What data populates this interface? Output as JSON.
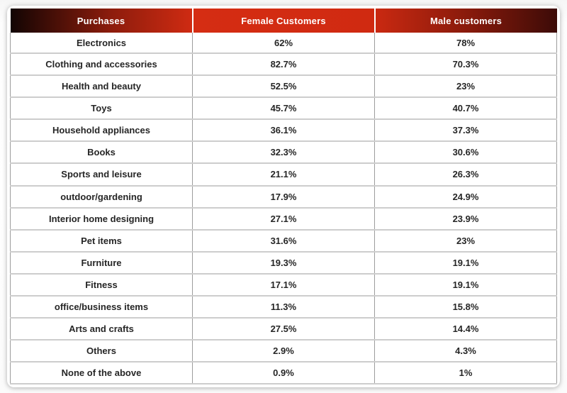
{
  "table": {
    "columns": [
      "Purchases",
      "Female Customers",
      "Male customers"
    ],
    "rows": [
      [
        "Electronics",
        "62%",
        "78%"
      ],
      [
        "Clothing and accessories",
        "82.7%",
        "70.3%"
      ],
      [
        "Health and beauty",
        "52.5%",
        "23%"
      ],
      [
        "Toys",
        "45.7%",
        "40.7%"
      ],
      [
        "Household appliances",
        "36.1%",
        "37.3%"
      ],
      [
        "Books",
        "32.3%",
        "30.6%"
      ],
      [
        "Sports and leisure",
        "21.1%",
        "26.3%"
      ],
      [
        "outdoor/gardening",
        "17.9%",
        "24.9%"
      ],
      [
        "Interior home designing",
        "27.1%",
        "23.9%"
      ],
      [
        "Pet items",
        "31.6%",
        "23%"
      ],
      [
        "Furniture",
        "19.3%",
        "19.1%"
      ],
      [
        "Fitness",
        "17.1%",
        "19.1%"
      ],
      [
        "office/business items",
        "11.3%",
        "15.8%"
      ],
      [
        "Arts and crafts",
        "27.5%",
        "14.4%"
      ],
      [
        "Others",
        "2.9%",
        "4.3%"
      ],
      [
        "None of the above",
        "0.9%",
        "1%"
      ]
    ]
  },
  "chart_data": {
    "type": "table",
    "title": "",
    "columns": [
      "Purchases",
      "Female Customers",
      "Male customers"
    ],
    "categories": [
      "Electronics",
      "Clothing and accessories",
      "Health and beauty",
      "Toys",
      "Household appliances",
      "Books",
      "Sports and leisure",
      "outdoor/gardening",
      "Interior home designing",
      "Pet items",
      "Furniture",
      "Fitness",
      "office/business items",
      "Arts and crafts",
      "Others",
      "None of the above"
    ],
    "series": [
      {
        "name": "Female Customers",
        "values": [
          62,
          82.7,
          52.5,
          45.7,
          36.1,
          32.3,
          21.1,
          17.9,
          27.1,
          31.6,
          19.3,
          17.1,
          11.3,
          27.5,
          2.9,
          0.9
        ]
      },
      {
        "name": "Male customers",
        "values": [
          78,
          70.3,
          23,
          40.7,
          37.3,
          30.6,
          26.3,
          24.9,
          23.9,
          23,
          19.1,
          19.1,
          15.8,
          14.4,
          4.3,
          1
        ]
      }
    ],
    "value_unit": "%"
  },
  "colors": {
    "header_gradient_left": "#120503",
    "header_gradient_red": "#d22c12",
    "header_gradient_right": "#3c0b07",
    "header_text": "#ffffff",
    "body_text": "#262626",
    "row_border_horizontal": "#cdcdcd",
    "column_border_vertical": "#9c9c9c",
    "card_background": "#ffffff"
  }
}
